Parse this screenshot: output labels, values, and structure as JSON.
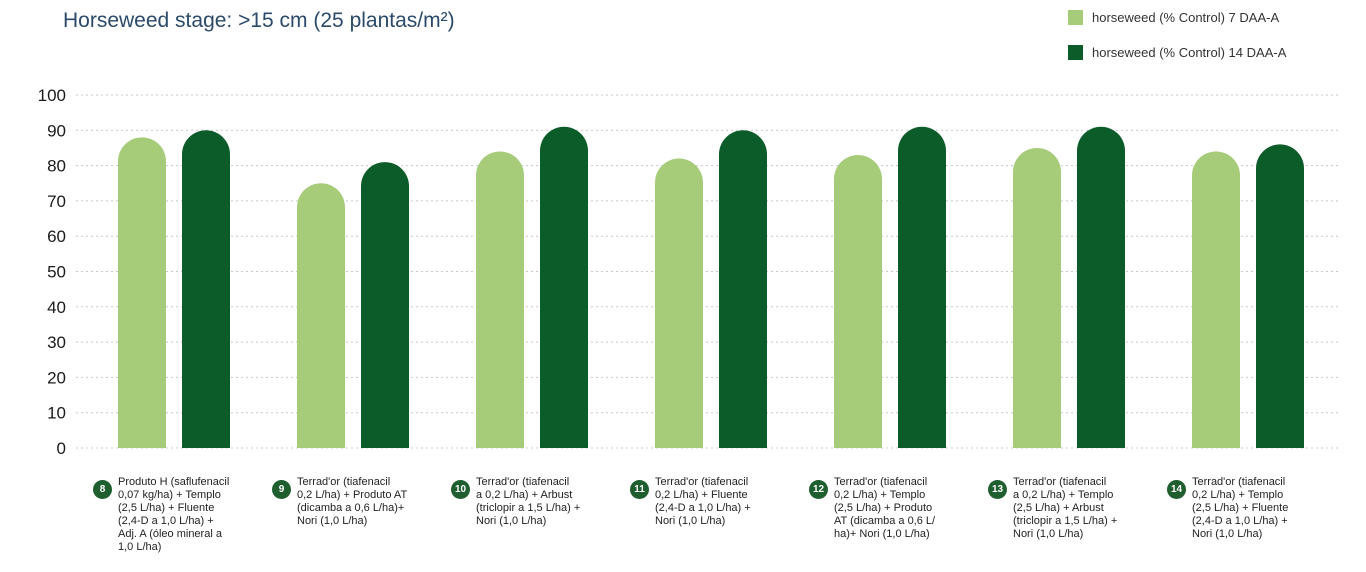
{
  "chart_data": {
    "type": "bar",
    "title": "Horseweed stage: >15 cm (25 plantas/m²)",
    "xlabel": "",
    "ylabel": "",
    "ylim": [
      0,
      100
    ],
    "yticks": [
      0,
      10,
      20,
      30,
      40,
      50,
      60,
      70,
      80,
      90,
      100
    ],
    "grid": true,
    "legend_position": "top-right",
    "categories": [
      {
        "number": "8",
        "label": "Produto H (saflufenacil\n0,07 kg/ha) + Templo\n(2,5 L/ha) + Fluente\n(2,4-D a 1,0 L/ha) +\nAdj. A (óleo mineral a\n1,0 L/ha)"
      },
      {
        "number": "9",
        "label": "Terrad'or (tiafenacil\n0,2 L/ha) + Produto AT\n(dicamba a 0,6 L/ha)+\nNori (1,0 L/ha)"
      },
      {
        "number": "10",
        "label": "Terrad'or (tiafenacil\na 0,2 L/ha) + Arbust\n(triclopir a 1,5 L/ha) +\nNori (1,0 L/ha)"
      },
      {
        "number": "11",
        "label": "Terrad'or (tiafenacil\n0,2 L/ha) + Fluente\n(2,4-D a 1,0 L/ha) +\nNori (1,0 L/ha)"
      },
      {
        "number": "12",
        "label": "Terrad'or (tiafenacil\n0,2 L/ha) + Templo\n(2,5 L/ha) + Produto\nAT (dicamba a 0,6 L/\nha)+ Nori (1,0 L/ha)"
      },
      {
        "number": "13",
        "label": "Terrad'or (tiafenacil\na 0,2 L/ha) + Templo\n(2,5 L/ha) + Arbust\n(triclopir a 1,5 L/ha) +\nNori (1,0 L/ha)"
      },
      {
        "number": "14",
        "label": "Terrad'or (tiafenacil\n0,2 L/ha) + Templo\n(2,5 L/ha) + Fluente\n(2,4-D a 1,0 L/ha) +\nNori (1,0 L/ha)"
      }
    ],
    "series": [
      {
        "name": "horseweed (% Control) 7 DAA-A",
        "color": "#a6cc7a",
        "values": [
          88,
          75,
          84,
          82,
          83,
          85,
          84
        ]
      },
      {
        "name": "horseweed (% Control) 14 DAA-A",
        "color": "#0c5c2a",
        "values": [
          90,
          81,
          91,
          90,
          91,
          91,
          86
        ]
      }
    ],
    "colors": {
      "grid": "#c8c8c8",
      "axis_text": "#1a1a1a",
      "badge": "#1f5e2e",
      "title": "#2b4a6a"
    }
  }
}
